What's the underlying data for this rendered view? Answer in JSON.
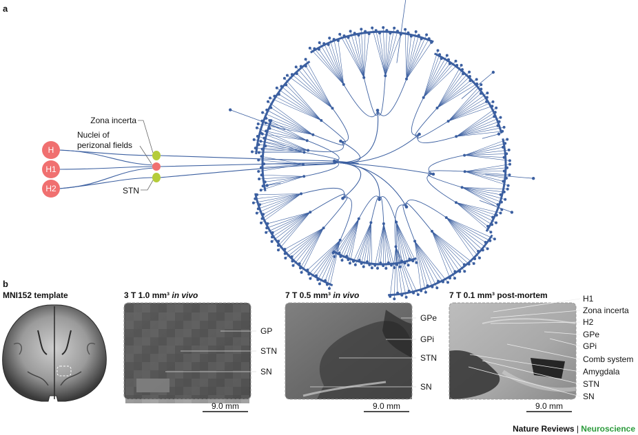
{
  "panel_a": {
    "letter": "a",
    "nodes": [
      "H",
      "H1",
      "H2"
    ],
    "labels": {
      "zona_incerta": "Zona incerta",
      "nuclei_line1": "Nuclei of",
      "nuclei_line2": "perizonal fields",
      "stn": "STN"
    },
    "colors": {
      "red": "#f07070",
      "green": "#b5cc3a",
      "tree": "#3b5fa0"
    }
  },
  "panel_b": {
    "letter": "b",
    "template_title": "MNI152 template",
    "img1": {
      "title_main": "3 T 1.0 mm³ ",
      "title_ital": "in vivo",
      "labels": [
        "GP",
        "STN",
        "SN"
      ],
      "scale": "9.0 mm"
    },
    "img2": {
      "title_main": "7 T 0.5 mm³ ",
      "title_ital": "in vivo",
      "labels": [
        "GPe",
        "GPi",
        "STN",
        "SN"
      ],
      "scale": "9.0 mm"
    },
    "img3": {
      "title_main": "7 T 0.1 mm³ post-mortem",
      "labels": [
        "H1",
        "Zona incerta",
        "H2",
        "GPe",
        "GPi",
        "Comb system",
        "Amygdala",
        "STN",
        "SN"
      ],
      "scale": "9.0 mm"
    }
  },
  "credit": {
    "journal": "Nature Reviews",
    "separator": " | ",
    "section": "Neuroscience",
    "section_color": "#2a9a3a"
  }
}
